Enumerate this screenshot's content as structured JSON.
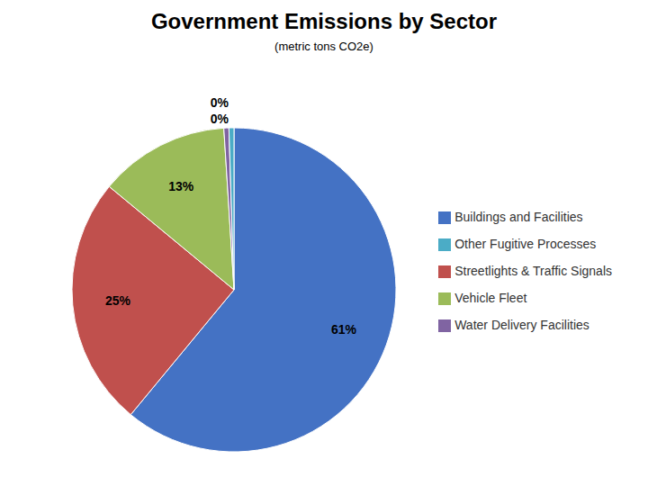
{
  "chart_data": {
    "type": "pie",
    "title": "Government Emissions by Sector",
    "subtitle": "(metric tons CO2e)",
    "categories": [
      "Buildings and Facilities",
      "Streetlights & Traffic Signals",
      "Vehicle Fleet",
      "Water Delivery Facilities",
      "Other Fugitive Processes"
    ],
    "values": [
      61,
      25,
      13,
      0.5,
      0.5
    ],
    "value_labels": [
      "61%",
      "25%",
      "13%",
      "0%",
      "0%"
    ],
    "colors": [
      "#4472C4",
      "#C0504D",
      "#9BBB59",
      "#8064A2",
      "#4BACC6"
    ],
    "data_labels": true,
    "legend": "right"
  }
}
